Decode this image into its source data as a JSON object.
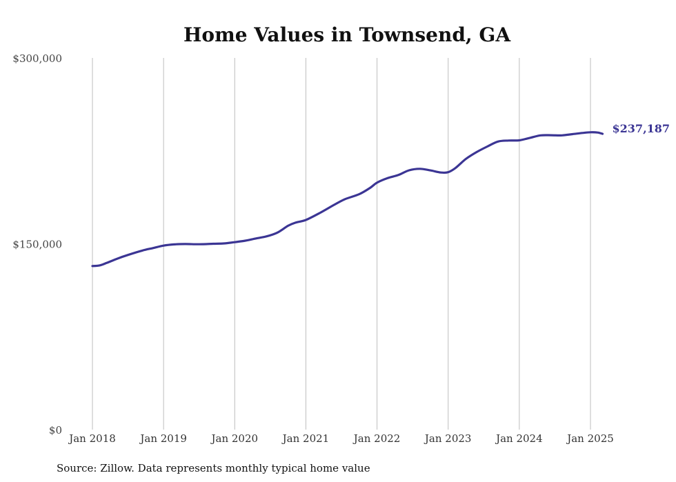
{
  "chart_data": {
    "type": "line",
    "title": "Home Values in Townsend, GA",
    "source": "Source: Zillow. Data represents monthly typical home value",
    "ylim": [
      0,
      300000
    ],
    "y_ticks": [
      {
        "value": 0,
        "label": "$0"
      },
      {
        "value": 150000,
        "label": "$150,000"
      },
      {
        "value": 300000,
        "label": "$300,000"
      }
    ],
    "x_ticks": [
      {
        "value": 2018.0,
        "label": "Jan 2018"
      },
      {
        "value": 2019.0,
        "label": "Jan 2019"
      },
      {
        "value": 2020.0,
        "label": "Jan 2020"
      },
      {
        "value": 2021.0,
        "label": "Jan 2021"
      },
      {
        "value": 2022.0,
        "label": "Jan 2022"
      },
      {
        "value": 2023.0,
        "label": "Jan 2023"
      },
      {
        "value": 2024.0,
        "label": "Jan 2024"
      },
      {
        "value": 2025.0,
        "label": "Jan 2025"
      }
    ],
    "xlim": [
      2018.0,
      2025.2
    ],
    "grid": "vertical",
    "end_label": "$237,187",
    "color": "#3b3594",
    "series": [
      {
        "x": [
          2018.0,
          2018.1,
          2018.2,
          2018.35,
          2018.5,
          2018.7,
          2018.85,
          2019.0,
          2019.15,
          2019.3,
          2019.5,
          2019.7,
          2019.85,
          2020.0,
          2020.15,
          2020.3,
          2020.45,
          2020.6,
          2020.75,
          2020.85,
          2021.0,
          2021.2,
          2021.4,
          2021.55,
          2021.75,
          2021.9,
          2022.0,
          2022.15,
          2022.3,
          2022.45,
          2022.6,
          2022.75,
          2022.9,
          2023.0,
          2023.1,
          2023.25,
          2023.4,
          2023.55,
          2023.7,
          2023.85,
          2024.0,
          2024.15,
          2024.3,
          2024.45,
          2024.6,
          2024.75,
          2024.9,
          2025.0,
          2025.1,
          2025.17
        ],
        "y": [
          132000,
          132500,
          134500,
          138000,
          141000,
          144500,
          146500,
          148500,
          149500,
          149800,
          149600,
          150000,
          150300,
          151300,
          152500,
          154300,
          156000,
          159000,
          164500,
          167000,
          169200,
          175000,
          181500,
          186000,
          190000,
          195000,
          199300,
          203000,
          205500,
          209300,
          210500,
          209200,
          207500,
          207800,
          211000,
          218500,
          224000,
          228500,
          232500,
          233300,
          233500,
          235500,
          237500,
          237600,
          237500,
          238500,
          239500,
          240000,
          239800,
          238700
        ]
      }
    ]
  }
}
